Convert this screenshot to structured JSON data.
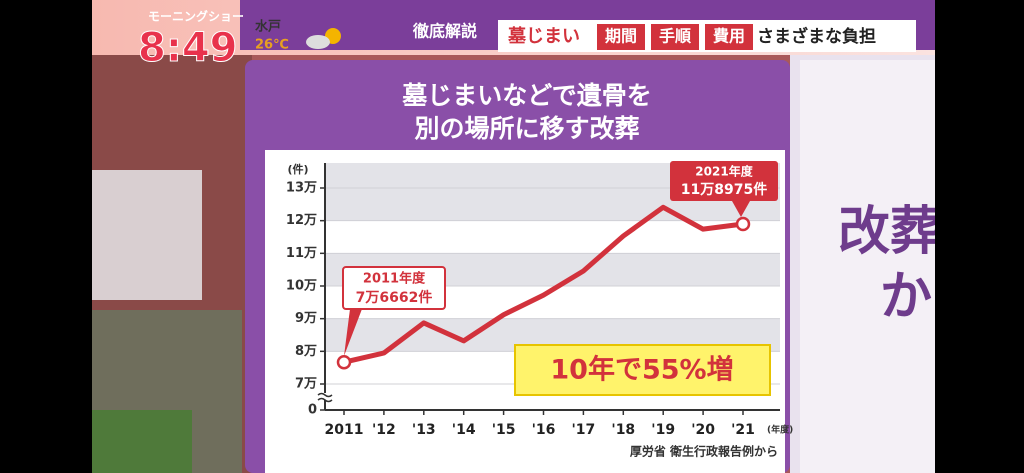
{
  "broadcast": {
    "show": "モーニングショー",
    "time": "8:49",
    "city": "水戸",
    "temperature": "26℃"
  },
  "headline": {
    "label": "徹底解説",
    "topic": "墓じまい",
    "tags": [
      "期間",
      "手順",
      "費用"
    ],
    "subtitle": "さまざまな負担"
  },
  "chart_data": {
    "type": "line",
    "title": [
      "墓じまいなどで遺骨を",
      "別の場所に移す改葬"
    ],
    "y_label": "(件)",
    "x_label": "(年度)",
    "categories": [
      "2011",
      "'12",
      "'13",
      "'14",
      "'15",
      "'16",
      "'17",
      "'18",
      "'19",
      "'20",
      "'21"
    ],
    "series": [
      {
        "name": "改葬",
        "color": "#d2323c",
        "values": [
          76662,
          79500,
          88700,
          83200,
          91200,
          97200,
          104600,
          115300,
          124100,
          117400,
          118975
        ]
      }
    ],
    "ylim": [
      0,
      130000
    ],
    "yticks": [
      0,
      {
        "value": 70000,
        "label": "7万"
      },
      {
        "value": 80000,
        "label": "8万"
      },
      {
        "value": 90000,
        "label": "9万"
      },
      {
        "value": 100000,
        "label": "10万"
      },
      {
        "value": 110000,
        "label": "11万"
      },
      {
        "value": 120000,
        "label": "12万"
      },
      {
        "value": 130000,
        "label": "13万"
      }
    ],
    "y_axis_break": true,
    "grid": true,
    "annotations": [
      "2011年度",
      "7万6662件",
      "2021年度",
      "11万8975件",
      "10年で55%増"
    ],
    "source": "厚労省 衛生行政報告例から"
  },
  "side_panel": {
    "lines": [
      "改葬",
      "か"
    ]
  }
}
